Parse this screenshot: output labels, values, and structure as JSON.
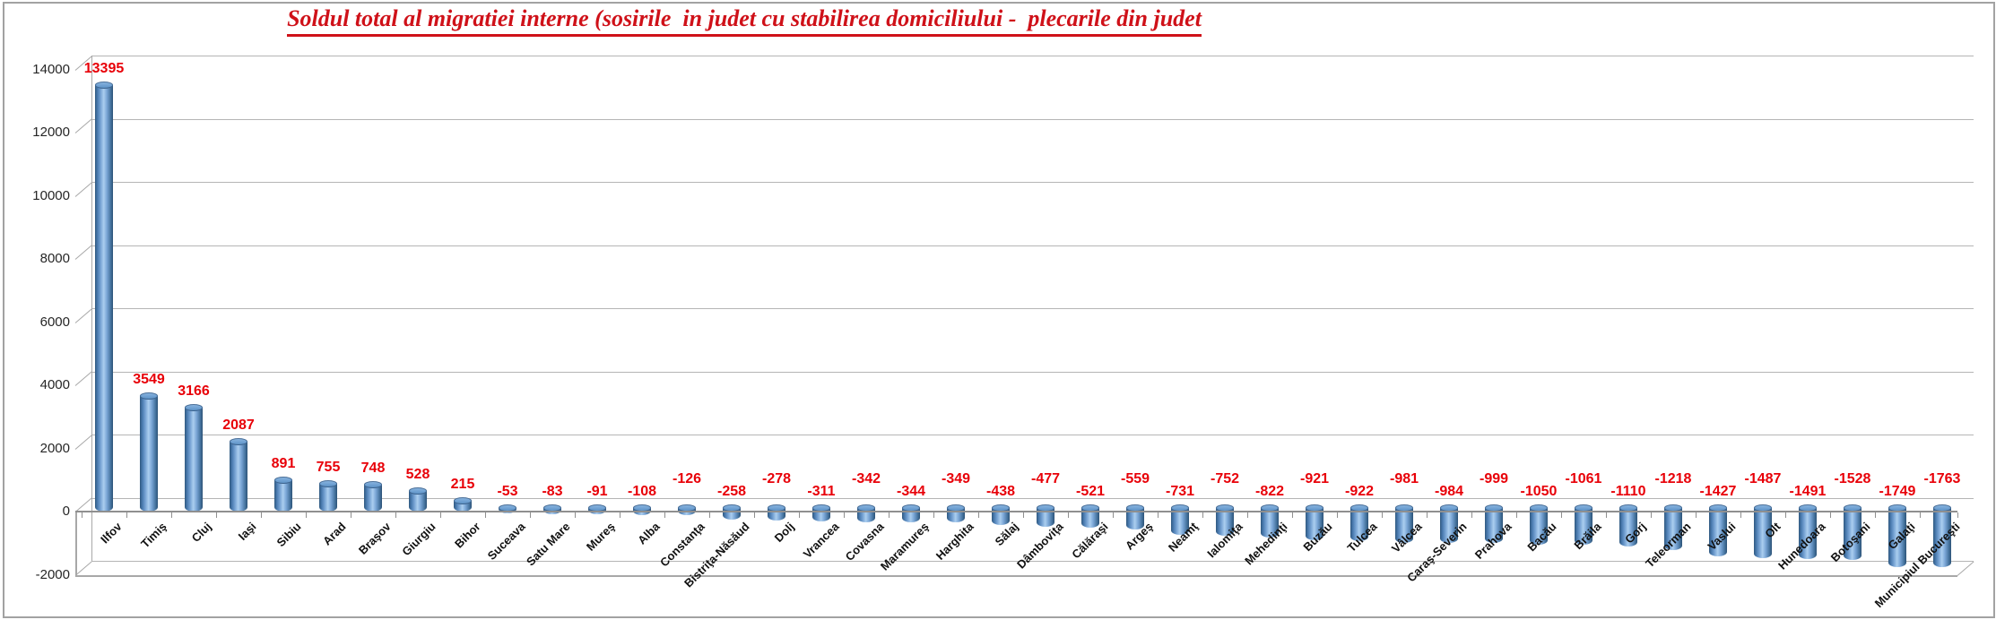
{
  "title": "Soldul total al migratiei interne (sosirile  in judet cu stabilirea domiciliului -  plecarile din judet",
  "chart_data": {
    "type": "bar",
    "subtype": "3d-cylinder",
    "title": "Soldul total al migratiei interne (sosirile  in judet cu stabilirea domiciliului -  plecarile din judet",
    "categories": [
      "Ilfov",
      "Timiş",
      "Cluj",
      "Iaşi",
      "Sibiu",
      "Arad",
      "Braşov",
      "Giurgiu",
      "Bihor",
      "Suceava",
      "Satu Mare",
      "Mureş",
      "Alba",
      "Constanţa",
      "Bistriţa-Năsăud",
      "Dolj",
      "Vrancea",
      "Covasna",
      "Maramureş",
      "Harghita",
      "Sălaj",
      "Dâmboviţa",
      "Călăraşi",
      "Argeş",
      "Neamţ",
      "Ialomiţa",
      "Mehedinţi",
      "Buzău",
      "Tulcea",
      "Vâlcea",
      "Caraş-Severin",
      "Prahova",
      "Bacău",
      "Brăila",
      "Gorj",
      "Teleorman",
      "Vaslui",
      "Olt",
      "Hunedoara",
      "Botoşani",
      "Galaţi",
      "Municipiul Bucureşti"
    ],
    "values": [
      13395,
      3549,
      3166,
      2087,
      891,
      755,
      748,
      528,
      215,
      -53,
      -83,
      -91,
      -108,
      -126,
      -258,
      -278,
      -311,
      -342,
      -344,
      -349,
      -438,
      -477,
      -521,
      -559,
      -731,
      -752,
      -822,
      -921,
      -922,
      -981,
      -984,
      -999,
      -1050,
      -1061,
      -1110,
      -1218,
      -1427,
      -1487,
      -1491,
      -1528,
      -1749,
      -1763
    ],
    "yticks": [
      14000,
      12000,
      10000,
      8000,
      6000,
      4000,
      2000,
      0,
      -2000
    ],
    "ylim": [
      -2000,
      14000
    ],
    "ytick_interval": 2000,
    "grid": true,
    "legend": "none",
    "xlabel": "",
    "ylabel": "",
    "bar_color": "#4f81bd",
    "data_label_color": "#e80008",
    "title_color": "#cf1119",
    "axis_text_color": "#262626",
    "gridline_color": "#b5b5b5"
  }
}
